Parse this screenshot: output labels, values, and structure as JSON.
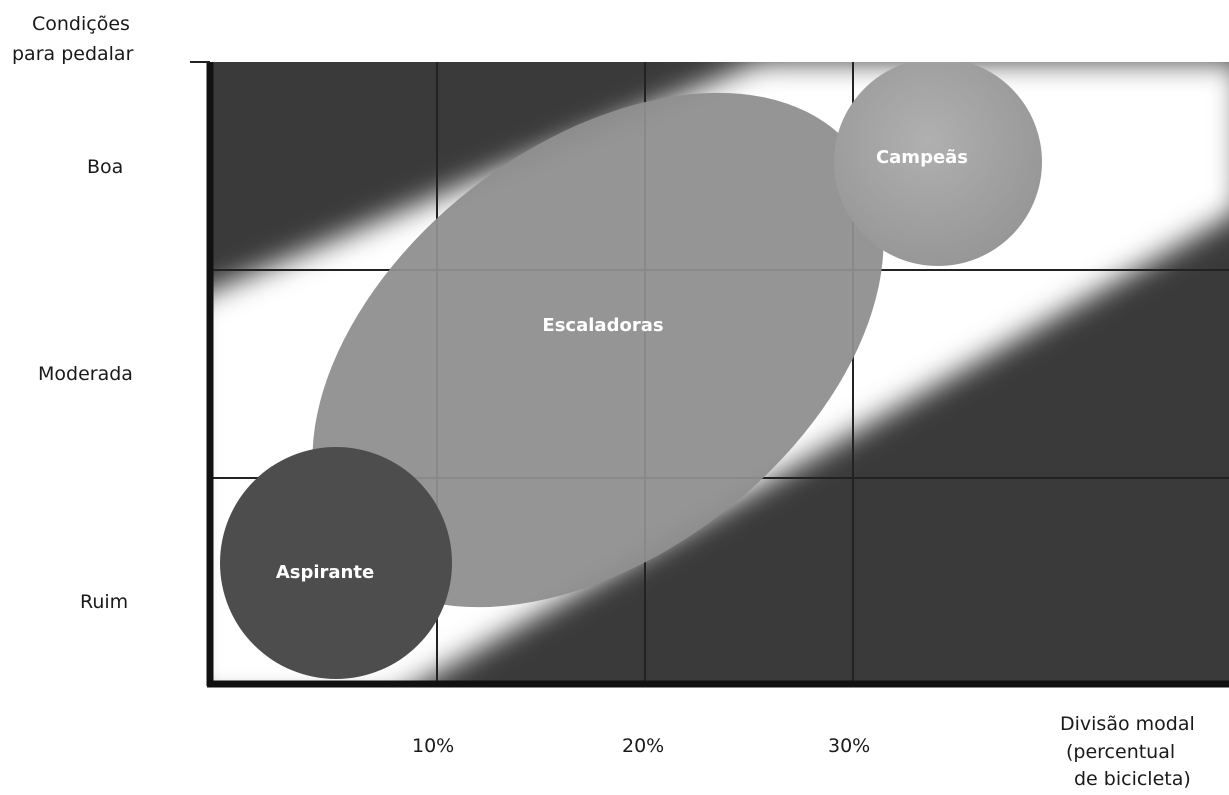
{
  "y_axis": {
    "title_line1": "Condições",
    "title_line2": "para  pedalar",
    "levels": [
      "Boa",
      "Moderada",
      "Ruim"
    ]
  },
  "x_axis": {
    "ticks": [
      "10%",
      "20%",
      "30%"
    ],
    "title_line1": "Divisão modal",
    "title_line2": "(percentual",
    "title_line3": "de bicicleta)"
  },
  "regions": {
    "aspirante": "Aspirante",
    "escaladoras": "Escaladoras",
    "campeas": "Campeãs"
  },
  "colors": {
    "background_band": "#3a3a3a",
    "diagonal_band": "#ffffff",
    "escaladoras_fill": "#8f8f8f",
    "campeas_fill": "#a8a8a8",
    "aspirante_fill": "#4d4d4d",
    "grid": "#222222"
  }
}
